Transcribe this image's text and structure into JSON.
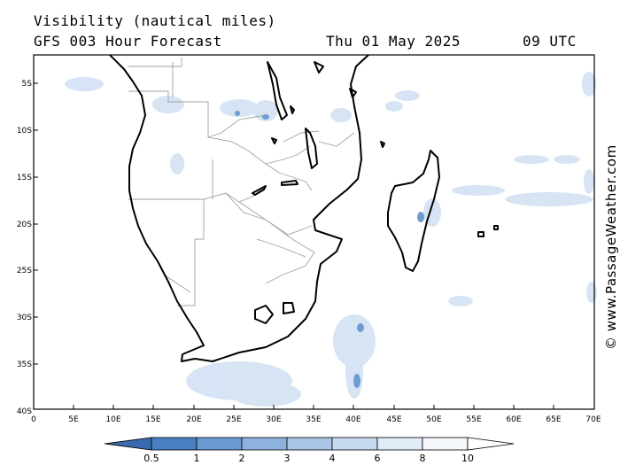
{
  "header": {
    "title": "Visibility (nautical miles)",
    "model": "GFS 003 Hour Forecast",
    "date": "Thu 01 May 2025",
    "time": "09 UTC"
  },
  "side_credit": "© www.PassageWeather.com",
  "axes": {
    "lat_labels": [
      "5S",
      "10S",
      "15S",
      "20S",
      "25S",
      "30S",
      "35S",
      "40S"
    ],
    "lon_labels": [
      "0",
      "5E",
      "10E",
      "15E",
      "20E",
      "25E",
      "30E",
      "35E",
      "40E",
      "45E",
      "50E",
      "55E",
      "60E",
      "65E",
      "70E"
    ]
  },
  "colorbar": {
    "labels": [
      "0.5",
      "1",
      "2",
      "3",
      "4",
      "6",
      "8",
      "10"
    ],
    "colors": [
      "#3b6fb3",
      "#4a82c4",
      "#6b9ad1",
      "#8cb2dd",
      "#aac6e7",
      "#c6d9f0",
      "#e0ebf7",
      "#f3f7fc",
      "#ffffff"
    ]
  },
  "colors": {
    "land": "#ffffff",
    "coast": "#000000",
    "border": "#a0a0a0",
    "fog": "#cfe0f2",
    "fog_dense": "#5b8fcc"
  }
}
